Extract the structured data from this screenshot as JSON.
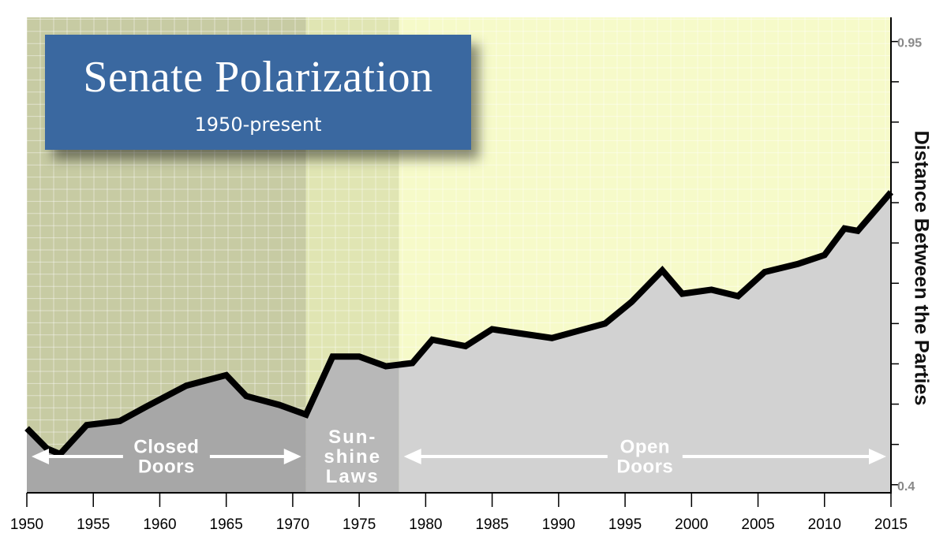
{
  "title": "Senate Polarization",
  "subtitle": "1950-present",
  "chart_data": {
    "type": "area",
    "title": "Senate Polarization",
    "subtitle": "1950-present",
    "xlabel": "",
    "ylabel": "Distance Between the Parties",
    "xlim": [
      1950,
      2015
    ],
    "ylim": [
      0.39,
      0.98
    ],
    "y_ticks": [
      0.4,
      0.95
    ],
    "x_ticks": [
      1950,
      1955,
      1960,
      1965,
      1970,
      1975,
      1980,
      1985,
      1990,
      1995,
      2000,
      2005,
      2010,
      2015
    ],
    "grid": true,
    "x": [
      1950,
      1951.5,
      1952.5,
      1954.5,
      1957,
      1959,
      1962,
      1965,
      1966.5,
      1969,
      1971,
      1973,
      1975,
      1977,
      1979,
      1980.5,
      1983,
      1985,
      1987,
      1989.5,
      1991.5,
      1993.5,
      1995.5,
      1997.8,
      1999.3,
      2001.5,
      2003.5,
      2005.5,
      2008,
      2010,
      2011.5,
      2012.5,
      2015
    ],
    "values": [
      0.47,
      0.445,
      0.438,
      0.474,
      0.479,
      0.497,
      0.523,
      0.536,
      0.51,
      0.499,
      0.487,
      0.559,
      0.559,
      0.547,
      0.551,
      0.58,
      0.572,
      0.593,
      0.588,
      0.582,
      0.591,
      0.6,
      0.627,
      0.666,
      0.637,
      0.642,
      0.634,
      0.664,
      0.674,
      0.685,
      0.718,
      0.715,
      0.763
    ],
    "eras": [
      {
        "label": "Closed Doors",
        "start": 1950,
        "end": 1971,
        "color": "#c7cba3"
      },
      {
        "label": "Sun-shine Laws",
        "start": 1971,
        "end": 1978,
        "color": "#e0e5b3"
      },
      {
        "label": "Open Doors",
        "start": 1978,
        "end": 2015,
        "color": "#f6fac9"
      }
    ],
    "era_labels": [
      {
        "lines": [
          "Closed",
          "Doors"
        ],
        "x": 1960.5
      },
      {
        "lines": [
          "Sun-",
          "shine",
          "Laws"
        ],
        "x": 1974.5
      },
      {
        "lines": [
          "Open",
          "Doors"
        ],
        "x": 1996.5
      }
    ],
    "era_arrows": [
      [
        1950,
        1971
      ],
      [
        1978,
        2015
      ]
    ],
    "colors": {
      "fill_closed": "#a7a7a7",
      "fill_sunshine": "#b8b8b8",
      "fill_open": "#d2d2d2",
      "line": "#000000"
    }
  }
}
